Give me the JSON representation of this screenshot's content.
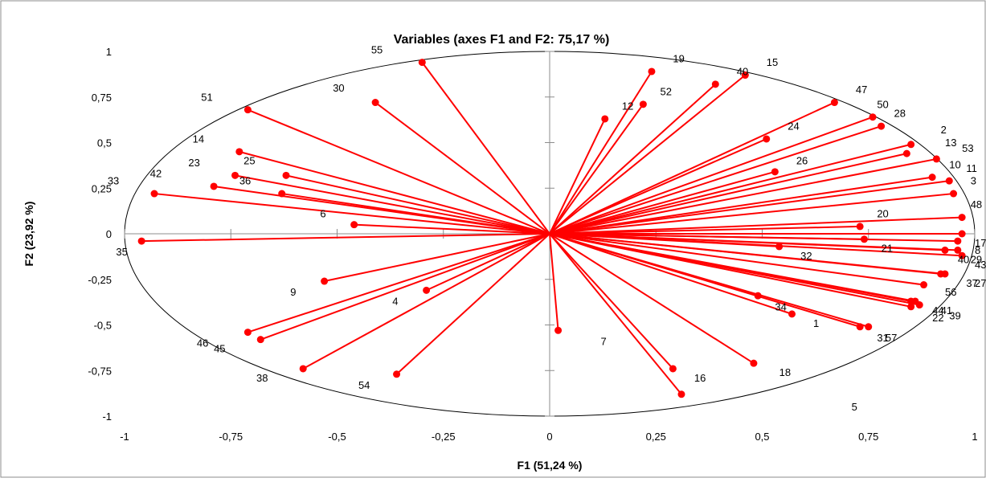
{
  "chart_data": {
    "type": "scatter",
    "title": "Variables (axes F1 and F2: 75,17 %)",
    "xlabel": "F1 (51,24 %)",
    "ylabel": "F2 (23,92 %)",
    "xlim": [
      -1,
      1
    ],
    "ylim": [
      -1,
      1
    ],
    "x_ticks": [
      {
        "value": -1,
        "label": "-1"
      },
      {
        "value": -0.75,
        "label": "-0,75"
      },
      {
        "value": -0.5,
        "label": "-0,5"
      },
      {
        "value": -0.25,
        "label": "-0,25"
      },
      {
        "value": 0,
        "label": "0"
      },
      {
        "value": 0.25,
        "label": "0,25"
      },
      {
        "value": 0.5,
        "label": "0,5"
      },
      {
        "value": 0.75,
        "label": "0,75"
      },
      {
        "value": 1,
        "label": "1"
      }
    ],
    "y_ticks": [
      {
        "value": 1,
        "label": "1"
      },
      {
        "value": 0.75,
        "label": "0,75"
      },
      {
        "value": 0.5,
        "label": "0,5"
      },
      {
        "value": 0.25,
        "label": "0,25"
      },
      {
        "value": 0,
        "label": "0"
      },
      {
        "value": -0.25,
        "label": "-0,25"
      },
      {
        "value": -0.5,
        "label": "-0,5"
      },
      {
        "value": -0.75,
        "label": "-0,75"
      },
      {
        "value": -1,
        "label": "-1"
      }
    ],
    "correlation_circle": true,
    "grid": false,
    "color": "#ff0000",
    "points": [
      {
        "x": -0.3,
        "y": 0.94
      },
      {
        "x": -0.41,
        "y": 0.72
      },
      {
        "x": -0.71,
        "y": 0.68
      },
      {
        "x": -0.73,
        "y": 0.45
      },
      {
        "x": -0.74,
        "y": 0.32
      },
      {
        "x": -0.62,
        "y": 0.32
      },
      {
        "x": -0.79,
        "y": 0.26
      },
      {
        "x": -0.63,
        "y": 0.22
      },
      {
        "x": -0.93,
        "y": 0.22
      },
      {
        "x": -0.46,
        "y": 0.05
      },
      {
        "x": -0.96,
        "y": -0.04
      },
      {
        "x": -0.53,
        "y": -0.26
      },
      {
        "x": -0.29,
        "y": -0.31
      },
      {
        "x": -0.71,
        "y": -0.54
      },
      {
        "x": -0.68,
        "y": -0.58
      },
      {
        "x": -0.58,
        "y": -0.74
      },
      {
        "x": -0.36,
        "y": -0.77
      },
      {
        "x": 0.02,
        "y": -0.53
      },
      {
        "x": 0.29,
        "y": -0.74
      },
      {
        "x": 0.31,
        "y": -0.88
      },
      {
        "x": 0.48,
        "y": -0.71
      },
      {
        "x": 0.24,
        "y": 0.89
      },
      {
        "x": 0.39,
        "y": 0.82
      },
      {
        "x": 0.46,
        "y": 0.87
      },
      {
        "x": 0.22,
        "y": 0.71
      },
      {
        "x": 0.13,
        "y": 0.63
      },
      {
        "x": 0.67,
        "y": 0.72
      },
      {
        "x": 0.76,
        "y": 0.64
      },
      {
        "x": 0.78,
        "y": 0.59
      },
      {
        "x": 0.51,
        "y": 0.52
      },
      {
        "x": 0.85,
        "y": 0.49
      },
      {
        "x": 0.84,
        "y": 0.44
      },
      {
        "x": 0.91,
        "y": 0.41
      },
      {
        "x": 0.53,
        "y": 0.34
      },
      {
        "x": 0.9,
        "y": 0.31
      },
      {
        "x": 0.94,
        "y": 0.29
      },
      {
        "x": 0.95,
        "y": 0.22
      },
      {
        "x": 0.97,
        "y": 0.09
      },
      {
        "x": 0.73,
        "y": 0.04
      },
      {
        "x": 0.97,
        "y": 0.0
      },
      {
        "x": 0.74,
        "y": -0.03
      },
      {
        "x": 0.96,
        "y": -0.04
      },
      {
        "x": 0.96,
        "y": -0.09
      },
      {
        "x": 0.93,
        "y": -0.09
      },
      {
        "x": 0.97,
        "y": -0.12
      },
      {
        "x": 0.54,
        "y": -0.07
      },
      {
        "x": 0.92,
        "y": -0.22
      },
      {
        "x": 0.93,
        "y": -0.22
      },
      {
        "x": 0.88,
        "y": -0.28
      },
      {
        "x": 0.85,
        "y": -0.37
      },
      {
        "x": 0.86,
        "y": -0.37
      },
      {
        "x": 0.87,
        "y": -0.39
      },
      {
        "x": 0.85,
        "y": -0.4
      },
      {
        "x": 0.49,
        "y": -0.34
      },
      {
        "x": 0.57,
        "y": -0.44
      },
      {
        "x": 0.73,
        "y": -0.51
      },
      {
        "x": 0.75,
        "y": -0.51
      }
    ],
    "labels": [
      {
        "text": "55",
        "x": -0.42,
        "y": 0.99
      },
      {
        "text": "30",
        "x": -0.51,
        "y": 0.78
      },
      {
        "text": "51",
        "x": -0.82,
        "y": 0.73
      },
      {
        "text": "14",
        "x": -0.84,
        "y": 0.5
      },
      {
        "text": "25",
        "x": -0.72,
        "y": 0.38
      },
      {
        "text": "23",
        "x": -0.85,
        "y": 0.37
      },
      {
        "text": "33",
        "x": -1.04,
        "y": 0.27
      },
      {
        "text": "42",
        "x": -0.94,
        "y": 0.31
      },
      {
        "text": "36",
        "x": -0.73,
        "y": 0.27
      },
      {
        "text": "6",
        "x": -0.54,
        "y": 0.09
      },
      {
        "text": "35",
        "x": -1.02,
        "y": -0.12
      },
      {
        "text": "9",
        "x": -0.61,
        "y": -0.34
      },
      {
        "text": "4",
        "x": -0.37,
        "y": -0.39
      },
      {
        "text": "46",
        "x": -0.83,
        "y": -0.62
      },
      {
        "text": "45",
        "x": -0.79,
        "y": -0.65
      },
      {
        "text": "38",
        "x": -0.69,
        "y": -0.81
      },
      {
        "text": "54",
        "x": -0.45,
        "y": -0.85
      },
      {
        "text": "7",
        "x": 0.12,
        "y": -0.61
      },
      {
        "text": "16",
        "x": 0.34,
        "y": -0.81
      },
      {
        "text": "5",
        "x": 0.71,
        "y": -0.97
      },
      {
        "text": "18",
        "x": 0.54,
        "y": -0.78
      },
      {
        "text": "19",
        "x": 0.29,
        "y": 0.94
      },
      {
        "text": "40",
        "x": 0.44,
        "y": 0.87
      },
      {
        "text": "15",
        "x": 0.51,
        "y": 0.92
      },
      {
        "text": "52",
        "x": 0.26,
        "y": 0.76
      },
      {
        "text": "12",
        "x": 0.17,
        "y": 0.68
      },
      {
        "text": "47",
        "x": 0.72,
        "y": 0.77
      },
      {
        "text": "50",
        "x": 0.77,
        "y": 0.69
      },
      {
        "text": "28",
        "x": 0.81,
        "y": 0.64
      },
      {
        "text": "24",
        "x": 0.56,
        "y": 0.57
      },
      {
        "text": "2",
        "x": 0.92,
        "y": 0.55
      },
      {
        "text": "13",
        "x": 0.93,
        "y": 0.48
      },
      {
        "text": "53",
        "x": 0.97,
        "y": 0.45
      },
      {
        "text": "26",
        "x": 0.58,
        "y": 0.38
      },
      {
        "text": "10",
        "x": 0.94,
        "y": 0.36
      },
      {
        "text": "11",
        "x": 0.98,
        "y": 0.34
      },
      {
        "text": "3",
        "x": 0.99,
        "y": 0.27
      },
      {
        "text": "48",
        "x": 0.99,
        "y": 0.14
      },
      {
        "text": "20",
        "x": 0.77,
        "y": 0.09
      },
      {
        "text": "17",
        "x": 1.0,
        "y": -0.07
      },
      {
        "text": "8",
        "x": 1.0,
        "y": -0.11
      },
      {
        "text": "21",
        "x": 0.78,
        "y": -0.1
      },
      {
        "text": "40",
        "x": 0.96,
        "y": -0.16
      },
      {
        "text": "29",
        "x": 0.99,
        "y": -0.16
      },
      {
        "text": "43",
        "x": 1.0,
        "y": -0.19
      },
      {
        "text": "32",
        "x": 0.59,
        "y": -0.14
      },
      {
        "text": "56",
        "x": 0.93,
        "y": -0.34
      },
      {
        "text": "37",
        "x": 0.98,
        "y": -0.29
      },
      {
        "text": "27",
        "x": 1.0,
        "y": -0.29
      },
      {
        "text": "44",
        "x": 0.9,
        "y": -0.44
      },
      {
        "text": "41",
        "x": 0.92,
        "y": -0.44
      },
      {
        "text": "22",
        "x": 0.9,
        "y": -0.48
      },
      {
        "text": "39",
        "x": 0.94,
        "y": -0.47
      },
      {
        "text": "34",
        "x": 0.53,
        "y": -0.42
      },
      {
        "text": "1",
        "x": 0.62,
        "y": -0.51
      },
      {
        "text": "31",
        "x": 0.77,
        "y": -0.59
      },
      {
        "text": "57",
        "x": 0.79,
        "y": -0.59
      }
    ]
  }
}
